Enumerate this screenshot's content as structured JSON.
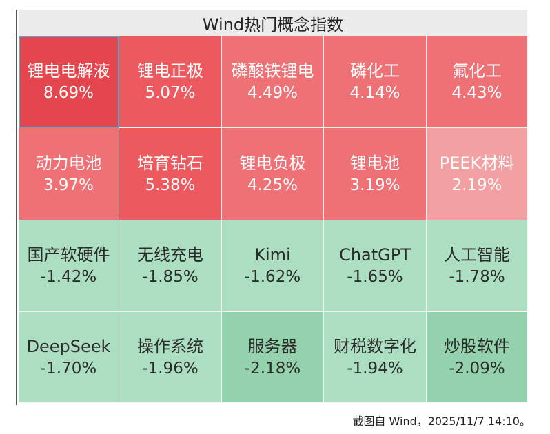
{
  "title": "Wind热门概念指数",
  "footnote": "截图自 Wind，2025/11/7 14:10。",
  "colors": {
    "up_strong": "#e5454d",
    "up_mid": "#ec5a60",
    "up_light": "#ee7176",
    "up_pale": "#f3a0a3",
    "down_light": "#acdfc2",
    "down_mid": "#93d2ad"
  },
  "chart_data": {
    "type": "table",
    "title": "Wind热门概念指数",
    "columns": 5,
    "items": [
      {
        "name": "锂电电解液",
        "change": "8.69%",
        "value": 8.69
      },
      {
        "name": "锂电正极",
        "change": "5.07%",
        "value": 5.07
      },
      {
        "name": "磷酸铁锂电",
        "change": "4.49%",
        "value": 4.49
      },
      {
        "name": "磷化工",
        "change": "4.14%",
        "value": 4.14
      },
      {
        "name": "氟化工",
        "change": "4.43%",
        "value": 4.43
      },
      {
        "name": "动力电池",
        "change": "3.97%",
        "value": 3.97
      },
      {
        "name": "培育钻石",
        "change": "5.38%",
        "value": 5.38
      },
      {
        "name": "锂电负极",
        "change": "4.25%",
        "value": 4.25
      },
      {
        "name": "锂电池",
        "change": "3.19%",
        "value": 3.19
      },
      {
        "name": "PEEK材料",
        "change": "2.19%",
        "value": 2.19
      },
      {
        "name": "国产软硬件",
        "change": "-1.42%",
        "value": -1.42
      },
      {
        "name": "无线充电",
        "change": "-1.85%",
        "value": -1.85
      },
      {
        "name": "Kimi",
        "change": "-1.62%",
        "value": -1.62
      },
      {
        "name": "ChatGPT",
        "change": "-1.65%",
        "value": -1.65
      },
      {
        "name": "人工智能",
        "change": "-1.78%",
        "value": -1.78
      },
      {
        "name": "DeepSeek",
        "change": "-1.70%",
        "value": -1.7
      },
      {
        "name": "操作系统",
        "change": "-1.96%",
        "value": -1.96
      },
      {
        "name": "服务器",
        "change": "-2.18%",
        "value": -2.18
      },
      {
        "name": "财税数字化",
        "change": "-1.94%",
        "value": -1.94
      },
      {
        "name": "炒股软件",
        "change": "-2.09%",
        "value": -2.09
      }
    ]
  }
}
